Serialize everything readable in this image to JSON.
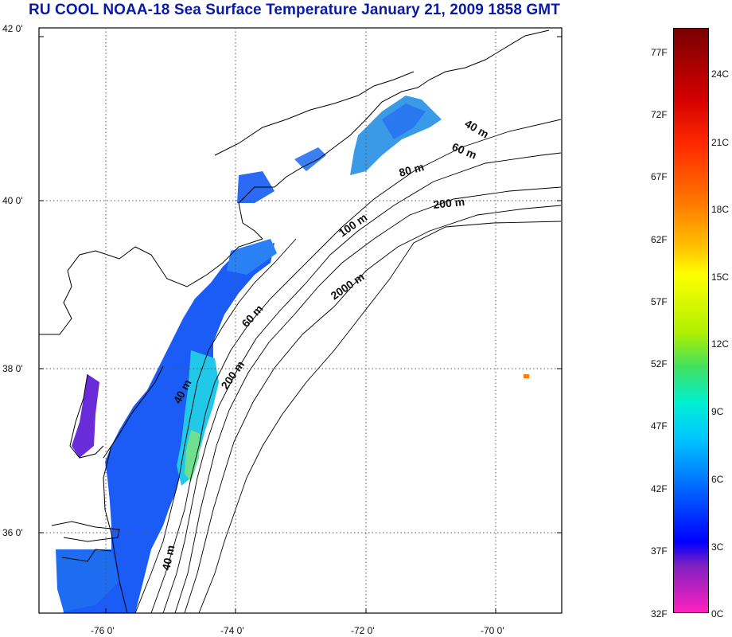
{
  "title": "RU COOL  NOAA-18 Sea Surface Temperature January 21, 2009 1858 GMT",
  "map": {
    "lat_labels": [
      "42 0'",
      "40 0'",
      "38 0'",
      "36 0'"
    ],
    "lon_labels": [
      "-76 0'",
      "-74 0'",
      "-72 0'",
      "-70 0'"
    ],
    "isobath_labels": [
      "40 m",
      "60 m",
      "80 m",
      "200 m",
      "100 m",
      "2000 m",
      "60 m",
      "40 m",
      "200 m",
      "40 m"
    ],
    "colors": {
      "land": "#ffffff",
      "coastline": "#000000",
      "no_data": "#ffffff"
    }
  },
  "colorbar": {
    "fahrenheit_labels": [
      "77F",
      "72F",
      "67F",
      "62F",
      "57F",
      "52F",
      "47F",
      "42F",
      "37F",
      "32F"
    ],
    "celsius_labels": [
      "24C",
      "21C",
      "18C",
      "15C",
      "12C",
      "9C",
      "6C",
      "3C",
      "0C"
    ],
    "gradient_top_to_bottom": [
      "#7a0000",
      "#d40000",
      "#ff2a00",
      "#ff7a00",
      "#ffc800",
      "#ffff00",
      "#b0f000",
      "#40e060",
      "#00f0d0",
      "#00c8ff",
      "#0070ff",
      "#0020ff",
      "#0000ff",
      "#8020c0",
      "#ff20c0"
    ]
  }
}
